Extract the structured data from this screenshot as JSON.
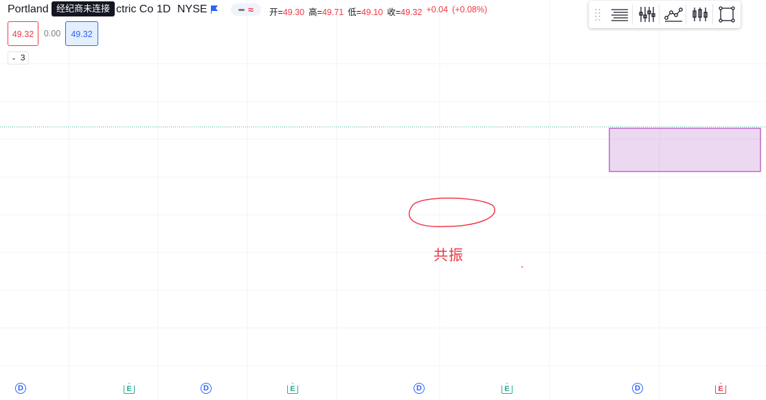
{
  "symbol": {
    "name_left": "Portland",
    "name_right": "ctric Co",
    "interval": "1D",
    "exchange": "NYSE",
    "status_tooltip": "经纪商未连接"
  },
  "ohlc": {
    "open_label": "开",
    "open": "49.30",
    "high_label": "高",
    "high": "49.71",
    "low_label": "低",
    "low": "49.10",
    "close_label": "收",
    "close": "49.32",
    "change": "+0.04",
    "change_pct": "(+0.08%)"
  },
  "order": {
    "sell_price": "49.32",
    "spread": "0.00",
    "buy_price": "49.32"
  },
  "indicators": {
    "collapsed_count": "3"
  },
  "toolbar": {
    "buttons": [
      "horizontal-lines-icon",
      "bars-icon",
      "path-icon",
      "candles-icon",
      "rectangle-icon"
    ]
  },
  "annotation": {
    "label": "共振"
  },
  "events": [
    {
      "type": "D",
      "icon": "dividend-icon"
    },
    {
      "type": "E",
      "icon": "earnings-icon"
    },
    {
      "type": "D",
      "icon": "dividend-icon"
    },
    {
      "type": "E",
      "icon": "earnings-icon"
    },
    {
      "type": "D",
      "icon": "dividend-icon"
    },
    {
      "type": "E",
      "icon": "earnings-icon"
    },
    {
      "type": "D",
      "icon": "dividend-icon"
    },
    {
      "type": "E",
      "icon": "earnings-icon",
      "upcoming": true
    }
  ],
  "colors": {
    "up": "#22ab94",
    "down": "#f23645",
    "accent": "#2962ff",
    "ma_fast": "#2196f3",
    "ma_mid": "#4caf50",
    "ma_teal": "#00897b",
    "ma_orange": "#ff9800",
    "ma_olive": "#808000",
    "range_box": "#9c27b0"
  }
}
